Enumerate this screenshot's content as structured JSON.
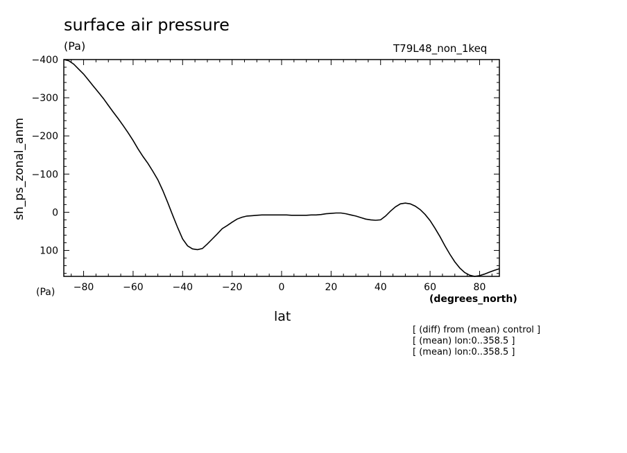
{
  "chart_data": {
    "type": "line",
    "title": "surface air pressure",
    "unit_top": "(Pa)",
    "run_label": "T79L48_non_1keq",
    "ylabel": "sh_ps_zonal_anm",
    "xlabel": "lat",
    "x_unit": "(degrees_north)",
    "y_unit": "(Pa)",
    "xlim": [
      -88,
      88
    ],
    "ylim": [
      -400,
      168
    ],
    "y_inverted": true,
    "x_ticks": [
      -80,
      -60,
      -40,
      -20,
      0,
      20,
      40,
      60,
      80
    ],
    "x_tick_labels": [
      "−80",
      "−60",
      "−40",
      "−20",
      "0",
      "20",
      "40",
      "60",
      "80"
    ],
    "y_ticks": [
      -400,
      -300,
      -200,
      -100,
      0,
      100
    ],
    "y_tick_labels": [
      "−400",
      "−300",
      "−200",
      "−100",
      "0",
      "100"
    ],
    "grid": false,
    "series": [
      {
        "x": [
          -88,
          -86,
          -84,
          -82,
          -80,
          -78,
          -76,
          -74,
          -72,
          -70,
          -68,
          -66,
          -64,
          -62,
          -60,
          -58,
          -56,
          -54,
          -52,
          -50,
          -48,
          -46,
          -44,
          -42,
          -40,
          -38,
          -36,
          -34,
          -32,
          -30,
          -28,
          -26,
          -24,
          -22,
          -20,
          -18,
          -16,
          -14,
          -12,
          -10,
          -8,
          -6,
          -4,
          -2,
          0,
          2,
          4,
          6,
          8,
          10,
          12,
          14,
          16,
          18,
          20,
          22,
          24,
          26,
          28,
          30,
          32,
          34,
          36,
          38,
          40,
          42,
          44,
          46,
          48,
          50,
          52,
          54,
          56,
          58,
          60,
          62,
          64,
          66,
          68,
          70,
          72,
          74,
          76,
          78,
          80,
          82,
          84,
          86,
          88
        ],
        "y": [
          -400,
          -397,
          -388,
          -375,
          -362,
          -346,
          -330,
          -314,
          -298,
          -280,
          -262,
          -245,
          -227,
          -208,
          -188,
          -166,
          -146,
          -128,
          -107,
          -85,
          -57,
          -25,
          8,
          40,
          70,
          88,
          96,
          98,
          95,
          83,
          70,
          57,
          43,
          35,
          26,
          18,
          13,
          10,
          9,
          8,
          7,
          7,
          7,
          7,
          7,
          7,
          8,
          8,
          8,
          8,
          7,
          7,
          6,
          4,
          3,
          2,
          2,
          4,
          7,
          10,
          14,
          18,
          20,
          21,
          20,
          10,
          -3,
          -14,
          -22,
          -24,
          -22,
          -16,
          -7,
          6,
          22,
          42,
          64,
          88,
          110,
          130,
          146,
          158,
          165,
          168,
          166,
          162,
          157,
          152,
          148
        ]
      }
    ]
  },
  "notes": [
    "[ (diff) from (mean) control ]",
    "[ (mean) lon:0..358.5 ]",
    "[ (mean) lon:0..358.5 ]"
  ]
}
